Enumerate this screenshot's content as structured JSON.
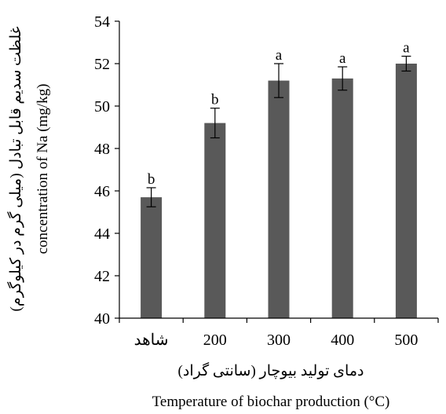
{
  "chart_data": {
    "type": "bar",
    "categories": [
      "شاهد",
      "200",
      "300",
      "400",
      "500"
    ],
    "values": [
      45.7,
      49.2,
      51.2,
      51.3,
      52.0
    ],
    "errors": [
      0.45,
      0.7,
      0.8,
      0.55,
      0.35
    ],
    "significance_letters": [
      "b",
      "b",
      "a",
      "a",
      "a"
    ],
    "ylim": [
      40,
      54
    ],
    "yticks": [
      40,
      42,
      44,
      46,
      48,
      50,
      52,
      54
    ],
    "xlabel_fa": "دمای تولید بیوچار (سانتی گراد)",
    "xlabel_en": "Temperature of biochar production (°C)",
    "ylabel_fa": "غلظت سدیم قابل تبادل (میلی گرم در کیلوگرم)",
    "ylabel_en": "concentration of Na (mg/kg)",
    "grid": false,
    "legend": "none",
    "colors": {
      "bar": "#595959",
      "axis": "#000000",
      "error_bar": "#000000"
    }
  }
}
